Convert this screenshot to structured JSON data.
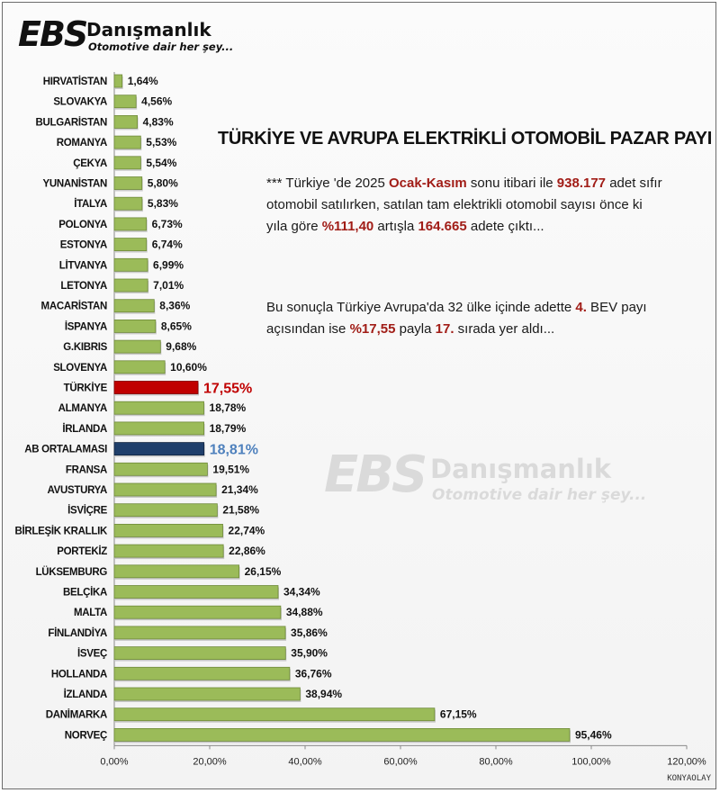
{
  "brand": {
    "name_ebs": "EBS",
    "name_word": "Danışmanlık",
    "slogan": "Otomotive dair her şey..."
  },
  "headline": "TÜRKİYE VE AVRUPA ELEKTRİKLİ OTOMOBİL PAZAR PAYI",
  "note1": {
    "t1": "*** Türkiye 'de 2025 ",
    "h1": "Ocak-Kasım",
    "t2": " sonu itibari ile ",
    "h2": "938.177",
    "t3": " adet sıfır otomobil satılırken, satılan tam elektrikli otomobil sayısı önce ki yıla göre ",
    "h3": "%111,40",
    "t4": " artışla ",
    "h4": "164.665",
    "t5": " adete çıktı..."
  },
  "note2": {
    "t1": "Bu sonuçla Türkiye Avrupa'da 32 ülke içinde adette ",
    "h1": "4.",
    "t2": " BEV payı açısından ise ",
    "h2": "%17,55",
    "t3": " payla ",
    "h3": "17.",
    "t4": " sırada yer aldı..."
  },
  "source": "KONYAOLAY",
  "colors": {
    "bar": "#9bbb59",
    "bar_edge": "#6f8a3a",
    "turkey": "#c00000",
    "turkey_label": "#c00000",
    "eu_avg": "#1f3f6b",
    "eu_avg_label": "#4f81bd",
    "label": "#111111",
    "highlight_text": "#a11d17"
  },
  "chart_data": {
    "type": "bar",
    "orientation": "horizontal",
    "xlim": [
      0,
      120
    ],
    "xticks": [
      "0,00%",
      "20,00%",
      "40,00%",
      "60,00%",
      "80,00%",
      "100,00%",
      "120,00%"
    ],
    "categories": [
      "HIRVATİSTAN",
      "SLOVAKYA",
      "BULGARİSTAN",
      "ROMANYA",
      "ÇEKYA",
      "YUNANİSTAN",
      "İTALYA",
      "POLONYA",
      "ESTONYA",
      "LİTVANYA",
      "LETONYA",
      "MACARİSTAN",
      "İSPANYA",
      "G.KIBRIS",
      "SLOVENYA",
      "TÜRKİYE",
      "ALMANYA",
      "İRLANDA",
      "AB ORTALAMASI",
      "FRANSA",
      "AVUSTURYA",
      "İSVİÇRE",
      "BİRLEŞİK KRALLIK",
      "PORTEKİZ",
      "LÜKSEMBURG",
      "BELÇİKA",
      "MALTA",
      "FİNLANDİYA",
      "İSVEÇ",
      "HOLLANDA",
      "İZLANDA",
      "DANİMARKA",
      "NORVEÇ"
    ],
    "values": [
      1.64,
      4.56,
      4.83,
      5.53,
      5.54,
      5.8,
      5.83,
      6.73,
      6.74,
      6.99,
      7.01,
      8.36,
      8.65,
      9.68,
      10.6,
      17.55,
      18.78,
      18.79,
      18.81,
      19.51,
      21.34,
      21.58,
      22.74,
      22.86,
      26.15,
      34.34,
      34.88,
      35.86,
      35.9,
      36.76,
      38.94,
      67.15,
      95.46
    ],
    "value_labels": [
      "1,64%",
      "4,56%",
      "4,83%",
      "5,53%",
      "5,54%",
      "5,80%",
      "5,83%",
      "6,73%",
      "6,74%",
      "6,99%",
      "7,01%",
      "8,36%",
      "8,65%",
      "9,68%",
      "10,60%",
      "17,55%",
      "18,78%",
      "18,79%",
      "18,81%",
      "19,51%",
      "21,34%",
      "21,58%",
      "22,74%",
      "22,86%",
      "26,15%",
      "34,34%",
      "34,88%",
      "35,86%",
      "35,90%",
      "36,76%",
      "38,94%",
      "67,15%",
      "95,46%"
    ],
    "highlight": {
      "TÜRKİYE": "turkey",
      "AB ORTALAMASI": "eu_avg"
    }
  }
}
